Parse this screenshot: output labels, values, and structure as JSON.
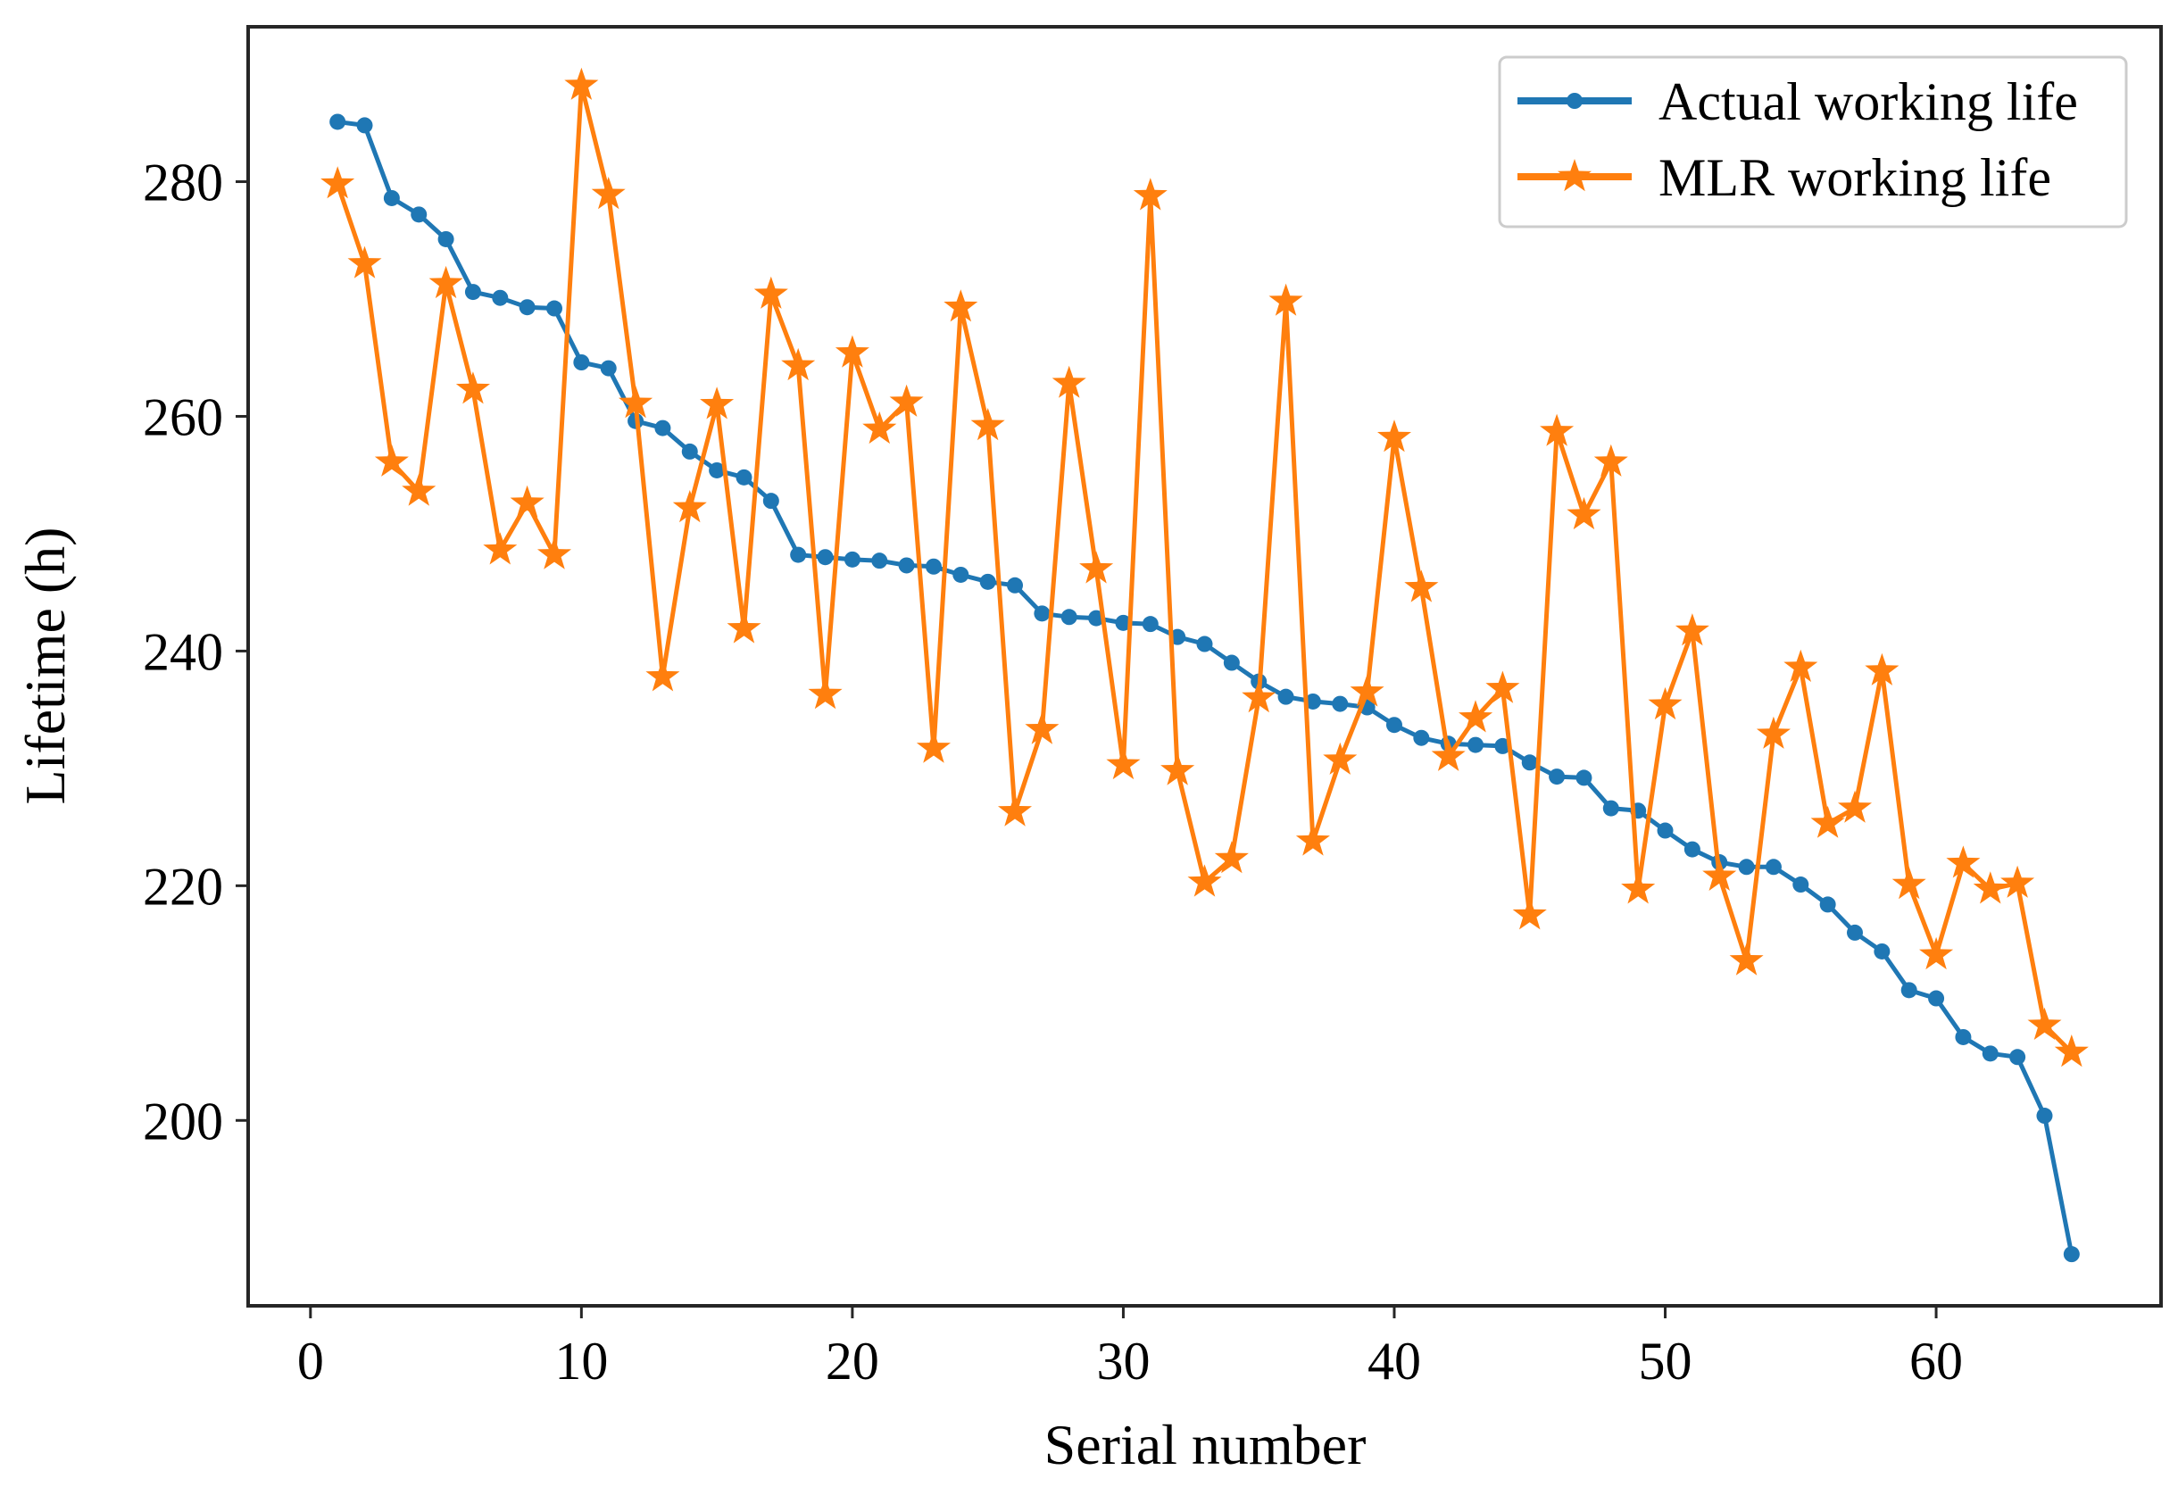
{
  "chart_data": {
    "type": "line",
    "title": "",
    "xlabel": "Serial number",
    "ylabel": "Lifetime (h)",
    "xlim": [
      -2.3,
      68.3
    ],
    "ylim": [
      184.2,
      293.2
    ],
    "xticks": [
      0,
      10,
      20,
      30,
      40,
      50,
      60
    ],
    "yticks": [
      200,
      220,
      240,
      260,
      280
    ],
    "legend_position": "top-right",
    "grid": false,
    "x": [
      1,
      2,
      3,
      4,
      5,
      6,
      7,
      8,
      9,
      10,
      11,
      12,
      13,
      14,
      15,
      16,
      17,
      18,
      19,
      20,
      21,
      22,
      23,
      24,
      25,
      26,
      27,
      28,
      29,
      30,
      31,
      32,
      33,
      34,
      35,
      36,
      37,
      38,
      39,
      40,
      41,
      42,
      43,
      44,
      45,
      46,
      47,
      48,
      49,
      50,
      51,
      52,
      53,
      54,
      55,
      56,
      57,
      58,
      59,
      60,
      61,
      62,
      63,
      64,
      65
    ],
    "series": [
      {
        "name": "Actual working life",
        "color": "#1f77b4",
        "marker": "circle",
        "values": [
          285.1,
          284.8,
          278.6,
          277.2,
          275.1,
          270.6,
          270.1,
          269.3,
          269.2,
          264.6,
          264.1,
          259.6,
          259.0,
          257.0,
          255.4,
          254.8,
          252.8,
          248.2,
          248.0,
          247.8,
          247.7,
          247.3,
          247.2,
          246.5,
          245.9,
          245.6,
          243.2,
          242.9,
          242.8,
          242.4,
          242.3,
          241.2,
          240.6,
          239.0,
          237.4,
          236.1,
          235.7,
          235.5,
          235.2,
          233.7,
          232.6,
          232.1,
          232.0,
          231.9,
          230.5,
          229.3,
          229.2,
          226.6,
          226.4,
          224.7,
          223.1,
          222.0,
          221.6,
          221.6,
          220.1,
          218.4,
          216.0,
          214.4,
          211.1,
          210.4,
          207.1,
          205.7,
          205.4,
          200.4,
          188.6
        ]
      },
      {
        "name": "MLR working life",
        "color": "#ff7f0e",
        "marker": "star",
        "values": [
          279.8,
          273.0,
          256.1,
          253.6,
          271.3,
          262.3,
          248.6,
          252.6,
          248.2,
          288.2,
          278.9,
          261.1,
          237.8,
          252.2,
          261.0,
          241.9,
          270.4,
          264.3,
          236.3,
          265.4,
          258.9,
          261.2,
          231.7,
          269.3,
          259.2,
          226.3,
          233.3,
          262.8,
          247.0,
          230.3,
          278.8,
          229.8,
          220.3,
          222.3,
          236.0,
          269.8,
          223.8,
          230.7,
          236.5,
          258.2,
          245.4,
          231.0,
          234.3,
          236.8,
          217.5,
          258.7,
          251.6,
          256.1,
          219.7,
          235.4,
          241.7,
          220.8,
          213.6,
          232.9,
          238.6,
          225.3,
          226.6,
          238.3,
          220.1,
          214.1,
          221.9,
          219.7,
          220.2,
          208.1,
          205.8
        ]
      }
    ]
  }
}
